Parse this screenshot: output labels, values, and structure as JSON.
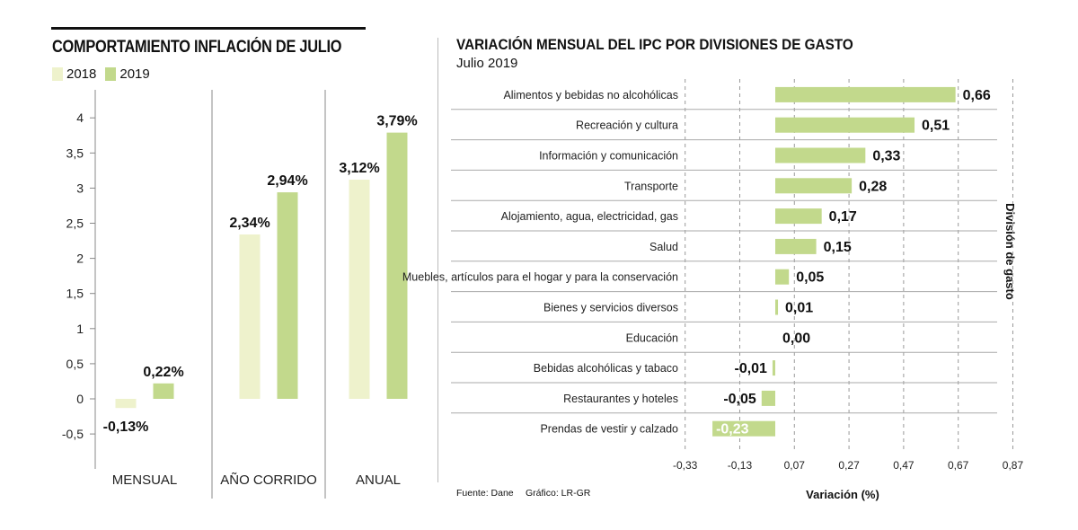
{
  "left": {
    "title": "COMPORTAMIENTO INFLACIÓN DE JULIO",
    "legend": [
      {
        "label": "2018",
        "color": "#eef2cc"
      },
      {
        "label": "2019",
        "color": "#c2d98c"
      }
    ]
  },
  "right": {
    "title": "VARIACIÓN MENSUAL DEL IPC POR DIVISIONES DE GASTO",
    "subtitle": "Julio 2019",
    "source": "Fuente: Dane",
    "credit": "Gráfico: LR-GR"
  },
  "chart_data": [
    {
      "type": "bar",
      "categories": [
        "MENSUAL",
        "AÑO CORRIDO",
        "ANUAL"
      ],
      "series": [
        {
          "name": "2018",
          "values": [
            -0.13,
            2.34,
            3.12
          ],
          "labels": [
            "-0,13%",
            "2,34%",
            "3,12%"
          ],
          "color": "#eef2cc"
        },
        {
          "name": "2019",
          "values": [
            0.22,
            2.94,
            3.79
          ],
          "labels": [
            "0,22%",
            "2,94%",
            "3,79%"
          ],
          "color": "#c2d98c"
        }
      ],
      "yticks": [
        -0.5,
        0,
        0.5,
        1,
        1.5,
        2,
        2.5,
        3,
        3.5,
        4
      ],
      "ytick_labels": [
        "-0,5",
        "0",
        "0,5",
        "1",
        "1,5",
        "2",
        "2,5",
        "3",
        "3,5",
        "4"
      ],
      "ylim": [
        -0.85,
        4.2
      ],
      "grid": false
    },
    {
      "type": "bar",
      "orientation": "horizontal",
      "categories": [
        "Alimentos y bebidas no alcohólicas",
        "Recreación y cultura",
        "Información y comunicación",
        "Transporte",
        "Alojamiento, agua, electricidad, gas",
        "Salud",
        "Muebles, artículos para el hogar y para la conservación",
        "Bienes y servicios diversos",
        "Educación",
        "Bebidas alcohólicas y tabaco",
        "Restaurantes y hoteles",
        "Prendas de vestir y calzado"
      ],
      "values": [
        0.66,
        0.51,
        0.33,
        0.28,
        0.17,
        0.15,
        0.05,
        0.01,
        0.0,
        -0.01,
        -0.05,
        -0.23
      ],
      "labels": [
        "0,66",
        "0,51",
        "0,33",
        "0,28",
        "0,17",
        "0,15",
        "0,05",
        "0,01",
        "0,00",
        "-0,01",
        "-0,05",
        "-0,23"
      ],
      "color": "#c2d98c",
      "xticks": [
        -0.33,
        -0.13,
        0.07,
        0.27,
        0.47,
        0.67,
        0.87
      ],
      "xtick_labels": [
        "-0,33",
        "-0,13",
        "0,07",
        "0,27",
        "0,47",
        "0,67",
        "0,87"
      ],
      "xlim": [
        -0.33,
        0.87
      ],
      "xlabel": "Variación (%)",
      "ylabel": "División de gasto",
      "grid": "vertical dashed"
    }
  ]
}
